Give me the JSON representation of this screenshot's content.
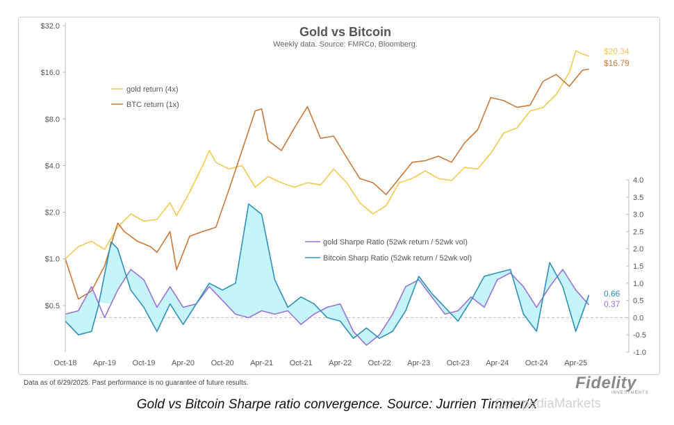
{
  "chart_data": {
    "type": "line",
    "title": "Gold vs Bitcoin",
    "subtitle": "Weekly data.  Source: FMRCo, Bloomberg.",
    "x_tick_labels": [
      "Oct-18",
      "Apr-19",
      "Oct-19",
      "Apr-20",
      "Oct-20",
      "Apr-21",
      "Oct-21",
      "Apr-22",
      "Oct-22",
      "Apr-23",
      "Oct-23",
      "Apr-24",
      "Oct-24",
      "Apr-25"
    ],
    "x_range": [
      "2018-10",
      "2025-07"
    ],
    "left_axis": {
      "scale": "log2",
      "tick_labels": [
        "$32.0",
        "$16.0",
        "$8.0",
        "$4.0",
        "$2.0",
        "$1.0",
        "$0.5"
      ],
      "range": [
        0.25,
        32
      ]
    },
    "right_axis": {
      "tick_labels": [
        "4.0",
        "3.5",
        "3.0",
        "2.5",
        "2.0",
        "1.5",
        "1.0",
        "0.5",
        "0.0",
        "-0.5",
        "-1.0"
      ],
      "range": [
        -1.0,
        4.0
      ]
    },
    "legend_top": [
      "gold return (4x)",
      "BTC return (1x)"
    ],
    "legend_bottom": [
      "gold Sharpe Ratio (52wk return / 52wk vol)",
      "Bitcoin Sharp Ratio (52wk return / 52wk vol)"
    ],
    "end_labels": {
      "gold_return": "$20.34",
      "btc_return": "$16.79",
      "gold_sharpe": "0.37",
      "btc_sharpe": "0.66"
    },
    "series": [
      {
        "name": "gold return (4x)",
        "color": "#f2c94c",
        "axis": "left",
        "points": [
          [
            "2018-10",
            1.0
          ],
          [
            "2018-12",
            1.2
          ],
          [
            "2019-02",
            1.3
          ],
          [
            "2019-04",
            1.15
          ],
          [
            "2019-06",
            1.6
          ],
          [
            "2019-08",
            1.95
          ],
          [
            "2019-10",
            1.75
          ],
          [
            "2019-12",
            1.8
          ],
          [
            "2020-02",
            2.3
          ],
          [
            "2020-03",
            1.9
          ],
          [
            "2020-05",
            2.7
          ],
          [
            "2020-07",
            4.0
          ],
          [
            "2020-08",
            5.0
          ],
          [
            "2020-09",
            4.2
          ],
          [
            "2020-11",
            3.8
          ],
          [
            "2021-01",
            4.0
          ],
          [
            "2021-03",
            2.9
          ],
          [
            "2021-05",
            3.4
          ],
          [
            "2021-07",
            3.1
          ],
          [
            "2021-09",
            2.9
          ],
          [
            "2021-11",
            3.1
          ],
          [
            "2022-01",
            3.0
          ],
          [
            "2022-03",
            3.8
          ],
          [
            "2022-05",
            3.1
          ],
          [
            "2022-07",
            2.3
          ],
          [
            "2022-09",
            1.95
          ],
          [
            "2022-11",
            2.2
          ],
          [
            "2023-01",
            3.1
          ],
          [
            "2023-03",
            3.3
          ],
          [
            "2023-05",
            3.7
          ],
          [
            "2023-07",
            3.3
          ],
          [
            "2023-09",
            3.2
          ],
          [
            "2023-11",
            3.9
          ],
          [
            "2024-01",
            3.8
          ],
          [
            "2024-03",
            4.8
          ],
          [
            "2024-05",
            6.5
          ],
          [
            "2024-07",
            7.0
          ],
          [
            "2024-09",
            9.0
          ],
          [
            "2024-11",
            9.5
          ],
          [
            "2025-01",
            11.5
          ],
          [
            "2025-03",
            16.0
          ],
          [
            "2025-04",
            22.0
          ],
          [
            "2025-05",
            21.0
          ],
          [
            "2025-06",
            20.34
          ]
        ]
      },
      {
        "name": "BTC return (1x)",
        "color": "#c8783a",
        "axis": "left",
        "points": [
          [
            "2018-10",
            1.0
          ],
          [
            "2018-12",
            0.55
          ],
          [
            "2019-02",
            0.62
          ],
          [
            "2019-04",
            0.9
          ],
          [
            "2019-06",
            1.7
          ],
          [
            "2019-07",
            1.5
          ],
          [
            "2019-09",
            1.3
          ],
          [
            "2019-11",
            1.2
          ],
          [
            "2019-12",
            1.1
          ],
          [
            "2020-02",
            1.5
          ],
          [
            "2020-03",
            0.85
          ],
          [
            "2020-05",
            1.4
          ],
          [
            "2020-07",
            1.5
          ],
          [
            "2020-09",
            1.6
          ],
          [
            "2020-11",
            2.8
          ],
          [
            "2021-01",
            5.0
          ],
          [
            "2021-03",
            9.0
          ],
          [
            "2021-04",
            9.3
          ],
          [
            "2021-05",
            5.8
          ],
          [
            "2021-07",
            5.0
          ],
          [
            "2021-09",
            7.0
          ],
          [
            "2021-11",
            9.6
          ],
          [
            "2022-01",
            6.0
          ],
          [
            "2022-03",
            6.2
          ],
          [
            "2022-05",
            4.5
          ],
          [
            "2022-07",
            3.3
          ],
          [
            "2022-09",
            3.1
          ],
          [
            "2022-11",
            2.6
          ],
          [
            "2023-01",
            3.3
          ],
          [
            "2023-03",
            4.2
          ],
          [
            "2023-05",
            4.3
          ],
          [
            "2023-07",
            4.6
          ],
          [
            "2023-09",
            4.2
          ],
          [
            "2023-11",
            5.6
          ],
          [
            "2024-01",
            6.8
          ],
          [
            "2024-03",
            11.0
          ],
          [
            "2024-05",
            10.5
          ],
          [
            "2024-07",
            9.5
          ],
          [
            "2024-09",
            9.8
          ],
          [
            "2024-11",
            14.0
          ],
          [
            "2025-01",
            15.5
          ],
          [
            "2025-03",
            13.0
          ],
          [
            "2025-05",
            16.5
          ],
          [
            "2025-06",
            16.79
          ]
        ]
      },
      {
        "name": "gold Sharpe Ratio (52wk return / 52wk vol)",
        "color": "#9b6fd6",
        "axis": "right",
        "points": [
          [
            "2018-10",
            0.1
          ],
          [
            "2018-12",
            0.2
          ],
          [
            "2019-02",
            0.9
          ],
          [
            "2019-04",
            0.0
          ],
          [
            "2019-06",
            0.8
          ],
          [
            "2019-08",
            1.4
          ],
          [
            "2019-10",
            1.1
          ],
          [
            "2019-12",
            0.3
          ],
          [
            "2020-02",
            0.9
          ],
          [
            "2020-04",
            0.3
          ],
          [
            "2020-06",
            0.4
          ],
          [
            "2020-08",
            0.9
          ],
          [
            "2020-10",
            0.5
          ],
          [
            "2020-12",
            0.1
          ],
          [
            "2021-02",
            0.0
          ],
          [
            "2021-04",
            0.2
          ],
          [
            "2021-06",
            0.1
          ],
          [
            "2021-08",
            0.2
          ],
          [
            "2021-10",
            -0.2
          ],
          [
            "2021-12",
            0.1
          ],
          [
            "2022-02",
            0.3
          ],
          [
            "2022-04",
            0.4
          ],
          [
            "2022-06",
            -0.4
          ],
          [
            "2022-08",
            -0.8
          ],
          [
            "2022-10",
            -0.5
          ],
          [
            "2022-12",
            0.1
          ],
          [
            "2023-02",
            0.9
          ],
          [
            "2023-04",
            1.1
          ],
          [
            "2023-06",
            0.6
          ],
          [
            "2023-08",
            0.1
          ],
          [
            "2023-10",
            0.2
          ],
          [
            "2023-12",
            0.6
          ],
          [
            "2024-02",
            0.3
          ],
          [
            "2024-04",
            1.1
          ],
          [
            "2024-06",
            1.3
          ],
          [
            "2024-08",
            0.9
          ],
          [
            "2024-10",
            0.3
          ],
          [
            "2024-12",
            0.9
          ],
          [
            "2025-02",
            1.4
          ],
          [
            "2025-04",
            0.8
          ],
          [
            "2025-06",
            0.37
          ]
        ]
      },
      {
        "name": "Bitcoin Sharp Ratio (52wk return / 52wk vol)",
        "color": "#2e8fb8",
        "fill": "#bff4f7",
        "axis": "right",
        "points": [
          [
            "2018-10",
            -0.1
          ],
          [
            "2018-12",
            -0.5
          ],
          [
            "2019-02",
            -0.4
          ],
          [
            "2019-03",
            0.3
          ],
          [
            "2019-05",
            2.2
          ],
          [
            "2019-06",
            2.0
          ],
          [
            "2019-08",
            0.8
          ],
          [
            "2019-10",
            0.3
          ],
          [
            "2019-12",
            -0.4
          ],
          [
            "2020-02",
            0.4
          ],
          [
            "2020-04",
            -0.2
          ],
          [
            "2020-06",
            0.4
          ],
          [
            "2020-08",
            1.0
          ],
          [
            "2020-10",
            0.8
          ],
          [
            "2020-12",
            1.0
          ],
          [
            "2021-02",
            3.3
          ],
          [
            "2021-04",
            3.0
          ],
          [
            "2021-06",
            1.1
          ],
          [
            "2021-08",
            0.3
          ],
          [
            "2021-10",
            0.6
          ],
          [
            "2021-12",
            0.4
          ],
          [
            "2022-02",
            0.0
          ],
          [
            "2022-04",
            -0.1
          ],
          [
            "2022-06",
            -0.6
          ],
          [
            "2022-08",
            -0.3
          ],
          [
            "2022-10",
            -0.6
          ],
          [
            "2022-12",
            -0.4
          ],
          [
            "2023-02",
            0.2
          ],
          [
            "2023-04",
            1.2
          ],
          [
            "2023-06",
            0.7
          ],
          [
            "2023-08",
            0.3
          ],
          [
            "2023-10",
            -0.1
          ],
          [
            "2023-12",
            0.5
          ],
          [
            "2024-02",
            1.2
          ],
          [
            "2024-04",
            1.3
          ],
          [
            "2024-06",
            1.4
          ],
          [
            "2024-08",
            0.1
          ],
          [
            "2024-10",
            -0.4
          ],
          [
            "2024-12",
            1.6
          ],
          [
            "2025-02",
            0.9
          ],
          [
            "2025-04",
            -0.4
          ],
          [
            "2025-06",
            0.66
          ]
        ]
      }
    ]
  },
  "footnote": "Data as of 6/29/2025. Past performance is no guarantee of future results.",
  "logo": {
    "brand": "Fidelity",
    "sub": "INVESTMENTS"
  },
  "caption": "Gold vs Bitcoin Sharpe ratio convergence. Source: Jurrien Timmer/X",
  "watermark": "CoinpediaMarkets"
}
